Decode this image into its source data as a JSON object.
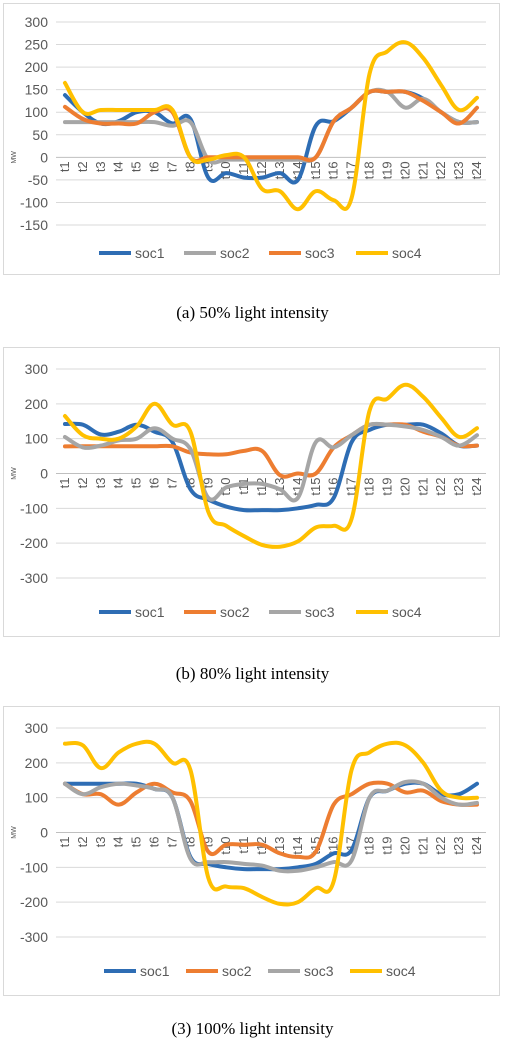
{
  "colors": {
    "soc1": "#2e6db4",
    "soc2": "#a6a6a6",
    "soc3": "#ed7d31",
    "soc4": "#ffc000",
    "grid": "#d9d9d9",
    "tick": "#595959"
  },
  "chart_data": [
    {
      "type": "line",
      "caption": "(a) 50% light intensity",
      "ylabel": "MW",
      "x": [
        "t1",
        "t2",
        "t3",
        "t4",
        "t5",
        "t6",
        "t7",
        "t8",
        "t9",
        "t10",
        "t11",
        "t12",
        "t13",
        "t14",
        "t15",
        "t16",
        "t17",
        "t18",
        "t19",
        "t20",
        "t21",
        "t22",
        "t23",
        "t24"
      ],
      "yticks": [
        300,
        250,
        200,
        150,
        100,
        50,
        0,
        -50,
        -100,
        -150
      ],
      "ylim": [
        -150,
        300
      ],
      "legend_position": "bottom",
      "series": [
        {
          "name": "soc1",
          "color": "#2e6db4",
          "values": [
            138,
            100,
            75,
            80,
            100,
            100,
            75,
            85,
            -45,
            -35,
            -45,
            -45,
            -35,
            -50,
            70,
            80,
            110,
            145,
            145,
            145,
            130,
            100,
            78,
            78
          ]
        },
        {
          "name": "soc2",
          "color": "#a6a6a6",
          "values": [
            78,
            78,
            78,
            78,
            78,
            78,
            70,
            78,
            -5,
            -5,
            -5,
            -5,
            -5,
            -5,
            0,
            80,
            110,
            145,
            145,
            110,
            130,
            100,
            78,
            78
          ]
        },
        {
          "name": "soc3",
          "color": "#ed7d31",
          "values": [
            112,
            85,
            75,
            75,
            75,
            100,
            100,
            0,
            0,
            0,
            0,
            0,
            0,
            0,
            0,
            80,
            110,
            145,
            145,
            145,
            125,
            100,
            75,
            110
          ]
        },
        {
          "name": "soc4",
          "color": "#ffc000",
          "values": [
            165,
            100,
            105,
            105,
            105,
            105,
            105,
            0,
            -5,
            5,
            0,
            -70,
            -75,
            -115,
            -75,
            -95,
            -90,
            185,
            235,
            255,
            220,
            160,
            105,
            132
          ]
        }
      ]
    },
    {
      "type": "line",
      "caption": "(b) 80% light intensity",
      "ylabel": "MW",
      "x": [
        "t1",
        "t2",
        "t3",
        "t4",
        "t5",
        "t6",
        "t7",
        "t8",
        "t9",
        "t10",
        "t11",
        "t12",
        "t13",
        "t14",
        "t15",
        "t16",
        "t17",
        "t18",
        "t19",
        "t20",
        "t21",
        "t22",
        "t23",
        "t24"
      ],
      "yticks": [
        300,
        200,
        100,
        0,
        -100,
        -200,
        -300
      ],
      "ylim": [
        -300,
        300
      ],
      "legend_position": "bottom",
      "series": [
        {
          "name": "soc1",
          "color": "#2e6db4",
          "values": [
            142,
            140,
            112,
            120,
            140,
            120,
            90,
            -45,
            -75,
            -95,
            -105,
            -105,
            -105,
            -100,
            -90,
            -70,
            90,
            125,
            140,
            140,
            140,
            115,
            80,
            80
          ]
        },
        {
          "name": "soc2",
          "color": "#ed7d31",
          "values": [
            78,
            78,
            78,
            78,
            78,
            78,
            78,
            60,
            55,
            55,
            65,
            65,
            -5,
            0,
            0,
            75,
            110,
            140,
            140,
            140,
            120,
            105,
            80,
            80
          ]
        },
        {
          "name": "soc3",
          "color": "#a6a6a6",
          "values": [
            105,
            75,
            80,
            95,
            100,
            130,
            100,
            70,
            -70,
            -40,
            -30,
            -30,
            -45,
            -70,
            90,
            75,
            110,
            140,
            140,
            135,
            125,
            105,
            80,
            110
          ]
        },
        {
          "name": "soc4",
          "color": "#ffc000",
          "values": [
            165,
            110,
            100,
            100,
            135,
            200,
            140,
            120,
            -110,
            -150,
            -180,
            -205,
            -210,
            -195,
            -155,
            -150,
            -130,
            180,
            215,
            255,
            220,
            160,
            105,
            130
          ]
        }
      ]
    },
    {
      "type": "line",
      "caption": "(3) 100% light intensity",
      "ylabel": "MW",
      "x": [
        "t1",
        "t2",
        "t3",
        "t4",
        "t5",
        "t6",
        "t7",
        "t8",
        "t9",
        "t10",
        "t11",
        "t12",
        "t13",
        "t14",
        "t15",
        "t16",
        "t17",
        "t18",
        "t19",
        "t20",
        "t21",
        "t22",
        "t23",
        "t24"
      ],
      "yticks": [
        300,
        200,
        100,
        0,
        -100,
        -200,
        -300
      ],
      "ylim": [
        -300,
        300
      ],
      "legend_position": "bottom",
      "series": [
        {
          "name": "soc1",
          "color": "#2e6db4",
          "values": [
            140,
            140,
            140,
            140,
            140,
            125,
            100,
            -70,
            -90,
            -100,
            -105,
            -105,
            -105,
            -100,
            -90,
            -60,
            -50,
            100,
            120,
            140,
            140,
            110,
            110,
            140
          ]
        },
        {
          "name": "soc2",
          "color": "#ed7d31",
          "values": [
            140,
            110,
            110,
            80,
            115,
            140,
            115,
            90,
            -55,
            -35,
            -35,
            -35,
            -60,
            -70,
            -55,
            80,
            110,
            140,
            140,
            115,
            120,
            90,
            80,
            80
          ]
        },
        {
          "name": "soc3",
          "color": "#a6a6a6",
          "values": [
            140,
            110,
            130,
            140,
            135,
            125,
            100,
            -75,
            -85,
            -85,
            -90,
            -95,
            -110,
            -110,
            -100,
            -85,
            -80,
            100,
            120,
            145,
            140,
            100,
            80,
            85
          ]
        },
        {
          "name": "soc4",
          "color": "#ffc000",
          "values": [
            255,
            250,
            185,
            230,
            255,
            255,
            200,
            180,
            -130,
            -155,
            -160,
            -185,
            -205,
            -200,
            -160,
            -140,
            180,
            230,
            255,
            250,
            200,
            120,
            100,
            100
          ]
        }
      ]
    }
  ]
}
